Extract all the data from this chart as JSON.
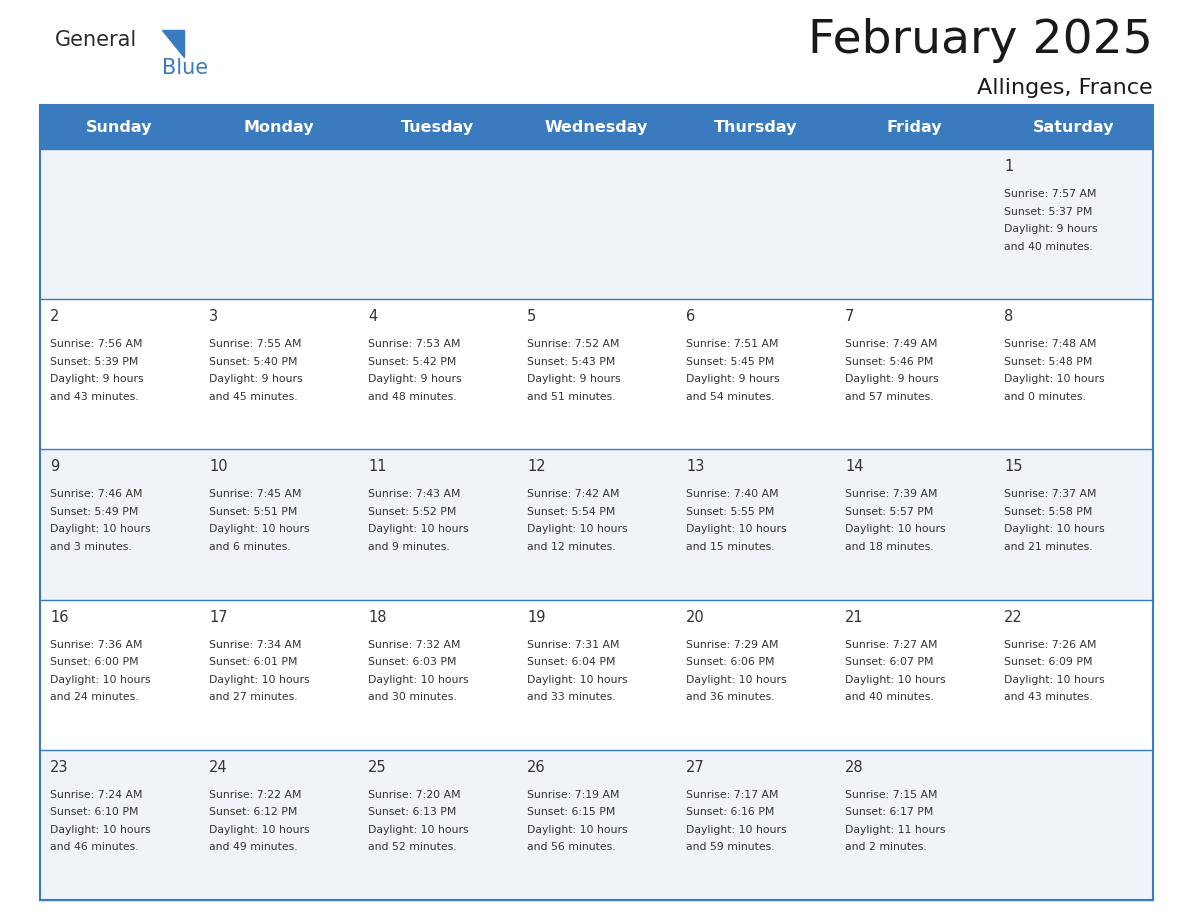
{
  "title": "February 2025",
  "subtitle": "Allinges, France",
  "header_bg": "#3a7abf",
  "header_text_color": "#ffffff",
  "days_of_week": [
    "Sunday",
    "Monday",
    "Tuesday",
    "Wednesday",
    "Thursday",
    "Friday",
    "Saturday"
  ],
  "cell_line_color": "#3a7abf",
  "logo_text1": "General",
  "logo_text2": "Blue",
  "logo_color1": "#333333",
  "logo_color2": "#3a7abf",
  "calendar": [
    [
      null,
      null,
      null,
      null,
      null,
      null,
      {
        "day": 1,
        "sunrise": "7:57 AM",
        "sunset": "5:37 PM",
        "daylight": "9 hours\nand 40 minutes."
      }
    ],
    [
      {
        "day": 2,
        "sunrise": "7:56 AM",
        "sunset": "5:39 PM",
        "daylight": "9 hours\nand 43 minutes."
      },
      {
        "day": 3,
        "sunrise": "7:55 AM",
        "sunset": "5:40 PM",
        "daylight": "9 hours\nand 45 minutes."
      },
      {
        "day": 4,
        "sunrise": "7:53 AM",
        "sunset": "5:42 PM",
        "daylight": "9 hours\nand 48 minutes."
      },
      {
        "day": 5,
        "sunrise": "7:52 AM",
        "sunset": "5:43 PM",
        "daylight": "9 hours\nand 51 minutes."
      },
      {
        "day": 6,
        "sunrise": "7:51 AM",
        "sunset": "5:45 PM",
        "daylight": "9 hours\nand 54 minutes."
      },
      {
        "day": 7,
        "sunrise": "7:49 AM",
        "sunset": "5:46 PM",
        "daylight": "9 hours\nand 57 minutes."
      },
      {
        "day": 8,
        "sunrise": "7:48 AM",
        "sunset": "5:48 PM",
        "daylight": "10 hours\nand 0 minutes."
      }
    ],
    [
      {
        "day": 9,
        "sunrise": "7:46 AM",
        "sunset": "5:49 PM",
        "daylight": "10 hours\nand 3 minutes."
      },
      {
        "day": 10,
        "sunrise": "7:45 AM",
        "sunset": "5:51 PM",
        "daylight": "10 hours\nand 6 minutes."
      },
      {
        "day": 11,
        "sunrise": "7:43 AM",
        "sunset": "5:52 PM",
        "daylight": "10 hours\nand 9 minutes."
      },
      {
        "day": 12,
        "sunrise": "7:42 AM",
        "sunset": "5:54 PM",
        "daylight": "10 hours\nand 12 minutes."
      },
      {
        "day": 13,
        "sunrise": "7:40 AM",
        "sunset": "5:55 PM",
        "daylight": "10 hours\nand 15 minutes."
      },
      {
        "day": 14,
        "sunrise": "7:39 AM",
        "sunset": "5:57 PM",
        "daylight": "10 hours\nand 18 minutes."
      },
      {
        "day": 15,
        "sunrise": "7:37 AM",
        "sunset": "5:58 PM",
        "daylight": "10 hours\nand 21 minutes."
      }
    ],
    [
      {
        "day": 16,
        "sunrise": "7:36 AM",
        "sunset": "6:00 PM",
        "daylight": "10 hours\nand 24 minutes."
      },
      {
        "day": 17,
        "sunrise": "7:34 AM",
        "sunset": "6:01 PM",
        "daylight": "10 hours\nand 27 minutes."
      },
      {
        "day": 18,
        "sunrise": "7:32 AM",
        "sunset": "6:03 PM",
        "daylight": "10 hours\nand 30 minutes."
      },
      {
        "day": 19,
        "sunrise": "7:31 AM",
        "sunset": "6:04 PM",
        "daylight": "10 hours\nand 33 minutes."
      },
      {
        "day": 20,
        "sunrise": "7:29 AM",
        "sunset": "6:06 PM",
        "daylight": "10 hours\nand 36 minutes."
      },
      {
        "day": 21,
        "sunrise": "7:27 AM",
        "sunset": "6:07 PM",
        "daylight": "10 hours\nand 40 minutes."
      },
      {
        "day": 22,
        "sunrise": "7:26 AM",
        "sunset": "6:09 PM",
        "daylight": "10 hours\nand 43 minutes."
      }
    ],
    [
      {
        "day": 23,
        "sunrise": "7:24 AM",
        "sunset": "6:10 PM",
        "daylight": "10 hours\nand 46 minutes."
      },
      {
        "day": 24,
        "sunrise": "7:22 AM",
        "sunset": "6:12 PM",
        "daylight": "10 hours\nand 49 minutes."
      },
      {
        "day": 25,
        "sunrise": "7:20 AM",
        "sunset": "6:13 PM",
        "daylight": "10 hours\nand 52 minutes."
      },
      {
        "day": 26,
        "sunrise": "7:19 AM",
        "sunset": "6:15 PM",
        "daylight": "10 hours\nand 56 minutes."
      },
      {
        "day": 27,
        "sunrise": "7:17 AM",
        "sunset": "6:16 PM",
        "daylight": "10 hours\nand 59 minutes."
      },
      {
        "day": 28,
        "sunrise": "7:15 AM",
        "sunset": "6:17 PM",
        "daylight": "11 hours\nand 2 minutes."
      },
      null
    ]
  ],
  "figwidth": 11.88,
  "figheight": 9.18,
  "dpi": 100
}
